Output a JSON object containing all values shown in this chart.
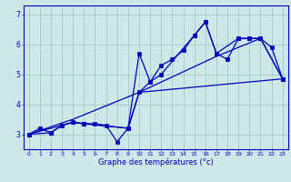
{
  "xlabel": "Graphe des températures (°c)",
  "bg_color": "#cce8e8",
  "line_color": "#0000bb",
  "grid_color": "#aacccc",
  "xlim": [
    -0.5,
    23.5
  ],
  "ylim": [
    2.5,
    7.3
  ],
  "xticks": [
    0,
    1,
    2,
    3,
    4,
    5,
    6,
    7,
    8,
    9,
    10,
    11,
    12,
    13,
    14,
    15,
    16,
    17,
    18,
    19,
    20,
    21,
    22,
    23
  ],
  "yticks": [
    3,
    4,
    5,
    6,
    7
  ],
  "line1_x": [
    0,
    1,
    2,
    3,
    4,
    5,
    6,
    7,
    8,
    9,
    10,
    11,
    12,
    13,
    14,
    15,
    16,
    17,
    18,
    19,
    20,
    21,
    22,
    23
  ],
  "line1_y": [
    3.0,
    3.2,
    3.05,
    3.3,
    3.4,
    3.35,
    3.35,
    3.3,
    2.75,
    3.2,
    5.7,
    4.75,
    5.3,
    5.5,
    5.8,
    6.3,
    6.75,
    5.7,
    5.5,
    6.2,
    6.2,
    6.2,
    5.9,
    4.85
  ],
  "line2_x": [
    0,
    2,
    3,
    4,
    5,
    9,
    10,
    11,
    12,
    15,
    16,
    17,
    19,
    20,
    21,
    23
  ],
  "line2_y": [
    3.0,
    3.05,
    3.3,
    3.4,
    3.35,
    3.2,
    4.4,
    4.75,
    5.0,
    6.3,
    6.75,
    5.7,
    6.2,
    6.2,
    6.2,
    4.85
  ],
  "line3_x": [
    0,
    4,
    9,
    10,
    23
  ],
  "line3_y": [
    3.0,
    3.4,
    3.2,
    4.4,
    4.85
  ],
  "line4_x": [
    0,
    4,
    10,
    17,
    21,
    23
  ],
  "line4_y": [
    3.0,
    3.5,
    4.4,
    5.6,
    6.2,
    4.85
  ]
}
